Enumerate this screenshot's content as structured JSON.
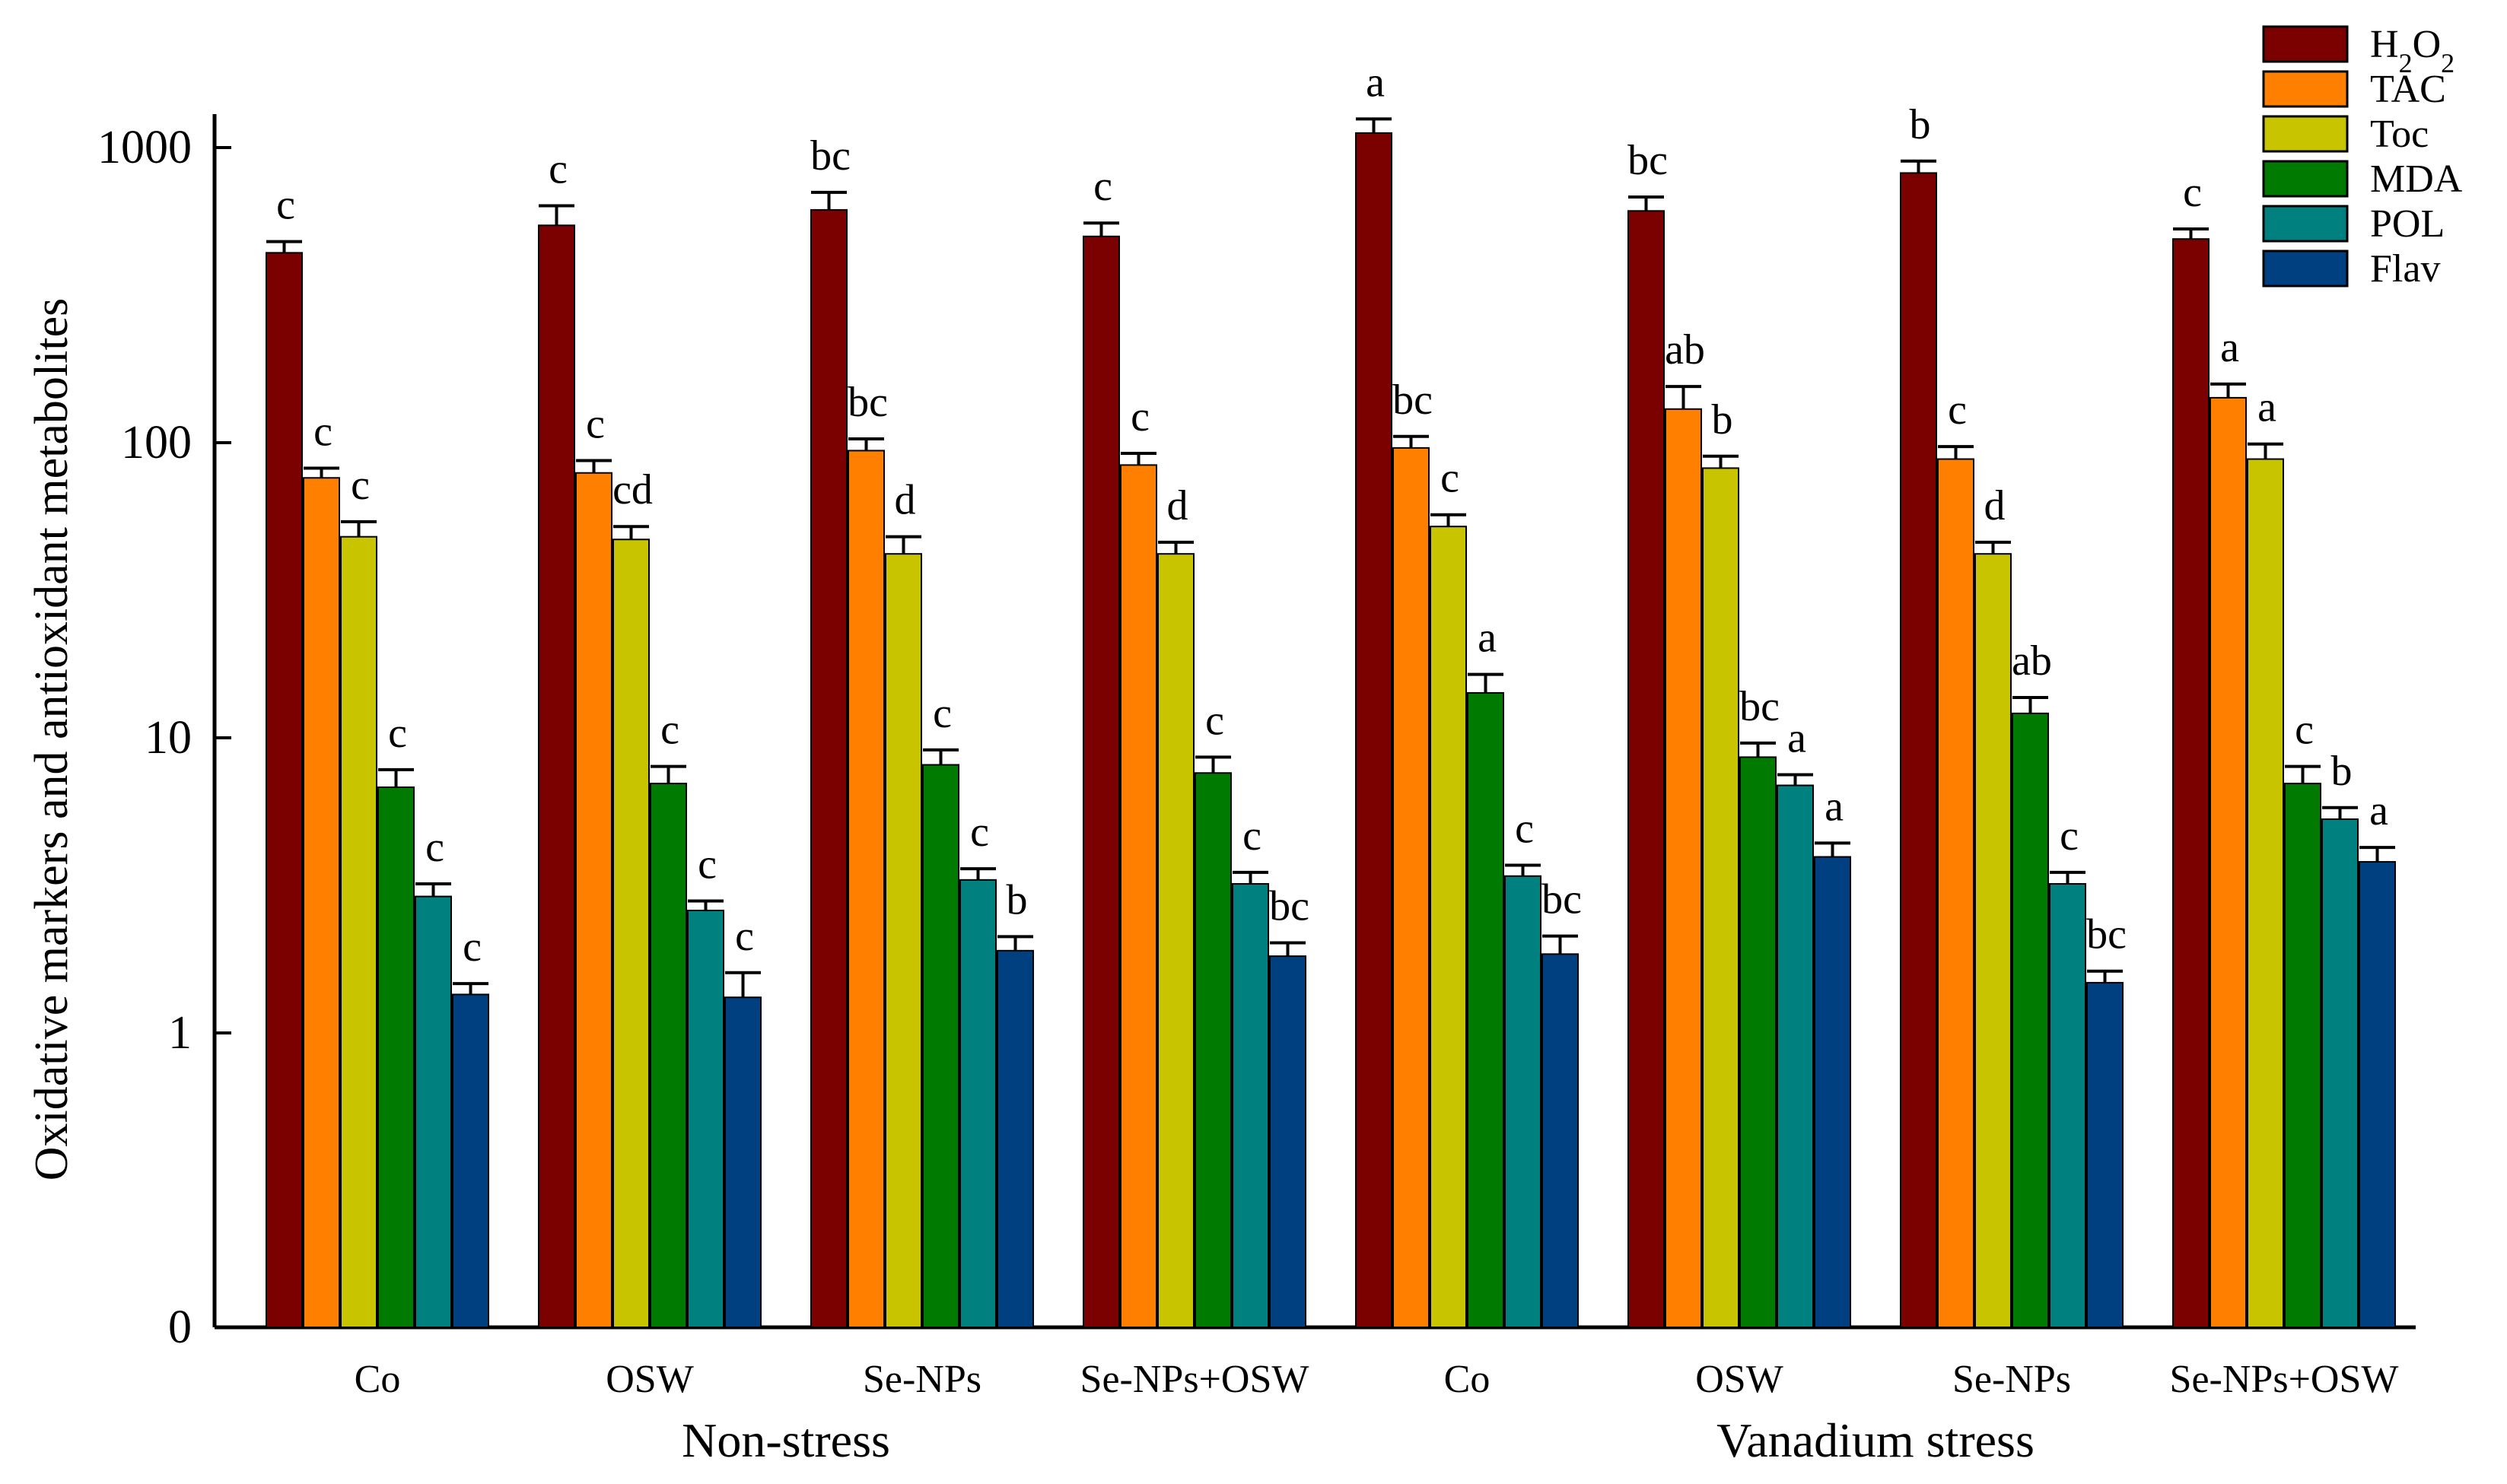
{
  "chart_data": {
    "type": "bar",
    "ylabel": "Oxidative markers and antioxidant metabolites",
    "yscale": "log",
    "yticks": [
      {
        "value": 0,
        "label": "0"
      },
      {
        "value": 1,
        "label": "1"
      },
      {
        "value": 10,
        "label": "10"
      },
      {
        "value": 100,
        "label": "100"
      },
      {
        "value": 1000,
        "label": "1000"
      }
    ],
    "categories": [
      "Co",
      "OSW",
      "Se-NPs",
      "Se-NPs+OSW",
      "Co",
      "OSW",
      "Se-NPs",
      "Se-NPs+OSW"
    ],
    "groups": [
      {
        "label": "Non-stress",
        "start": 0,
        "end": 3
      },
      {
        "label": "Vanadium stress",
        "start": 4,
        "end": 7
      }
    ],
    "series": [
      {
        "name": "H2O2",
        "color": "#7b0000",
        "values": [
          440,
          545,
          615,
          500,
          1120,
          610,
          820,
          490
        ],
        "errors": [
          40,
          90,
          90,
          55,
          130,
          70,
          80,
          40
        ],
        "letters": [
          "c",
          "c",
          "bc",
          "c",
          "a",
          "bc",
          "b",
          "c"
        ]
      },
      {
        "name": "TAC",
        "color": "#ff8000",
        "values": [
          76,
          79,
          94,
          84,
          96,
          130,
          88,
          142
        ],
        "errors": [
          6,
          8,
          9,
          8,
          9,
          25,
          9,
          16
        ],
        "letters": [
          "c",
          "c",
          "bc",
          "c",
          "bc",
          "ab",
          "c",
          "a"
        ]
      },
      {
        "name": "Toc",
        "color": "#c8c400",
        "values": [
          48,
          47,
          42,
          42,
          52,
          82,
          42,
          88
        ],
        "errors": [
          6,
          5,
          6,
          4,
          5,
          8,
          4,
          11
        ],
        "letters": [
          "c",
          "cd",
          "d",
          "d",
          "c",
          "b",
          "d",
          "a"
        ]
      },
      {
        "name": "MDA",
        "color": "#007a00",
        "values": [
          6.8,
          7.0,
          8.1,
          7.6,
          14.2,
          8.6,
          12.1,
          7.0
        ],
        "errors": [
          1.0,
          1.0,
          1.0,
          1.0,
          2.2,
          1.0,
          1.6,
          1.0
        ],
        "letters": [
          "c",
          "c",
          "c",
          "c",
          "a",
          "bc",
          "ab",
          "c"
        ]
      },
      {
        "name": "POL",
        "color": "#00807f",
        "values": [
          2.9,
          2.6,
          3.3,
          3.2,
          3.4,
          6.9,
          3.2,
          5.3
        ],
        "errors": [
          0.3,
          0.2,
          0.3,
          0.3,
          0.3,
          0.6,
          0.3,
          0.5
        ],
        "letters": [
          "c",
          "c",
          "c",
          "c",
          "c",
          "a",
          "c",
          "b"
        ]
      },
      {
        "name": "Flav",
        "color": "#003f80",
        "values": [
          1.35,
          1.32,
          1.9,
          1.82,
          1.85,
          3.95,
          1.48,
          3.8
        ],
        "errors": [
          0.12,
          0.28,
          0.22,
          0.2,
          0.28,
          0.45,
          0.14,
          0.45
        ],
        "letters": [
          "c",
          "c",
          "b",
          "bc",
          "bc",
          "a",
          "bc",
          "a"
        ]
      }
    ]
  }
}
